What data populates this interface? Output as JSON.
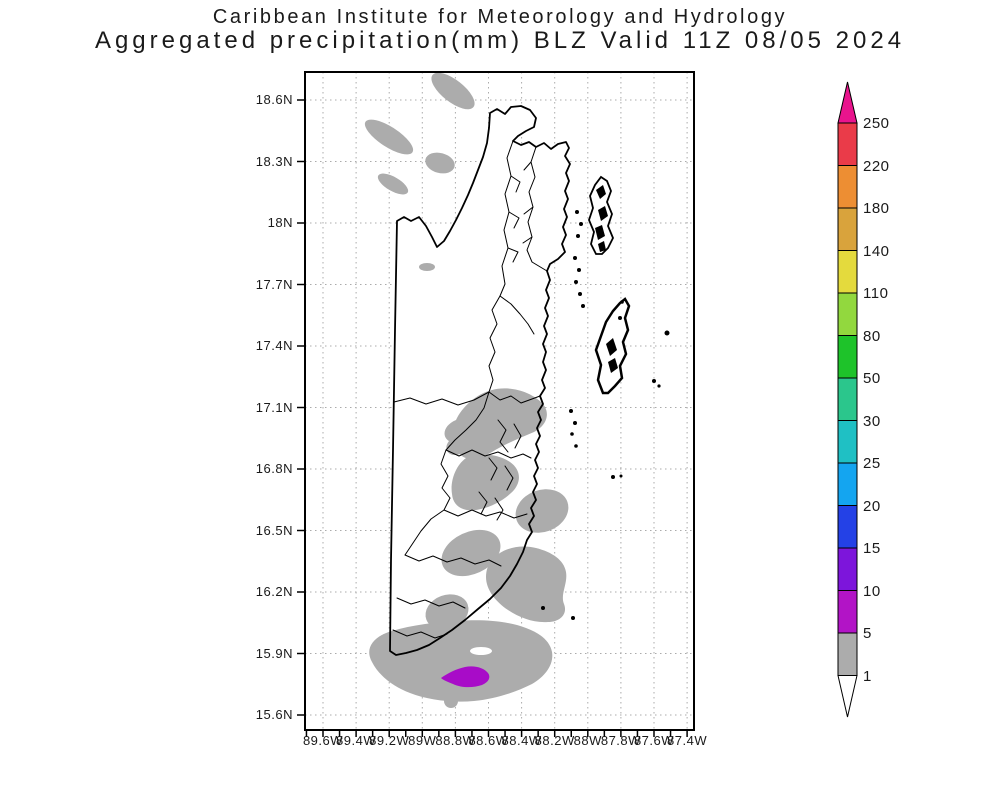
{
  "title": {
    "line1": "Caribbean Institute for Meteorology and Hydrology",
    "line2": "Aggregated precipitation(mm) BLZ Valid 11Z 08/05 2024"
  },
  "map": {
    "region_code": "BLZ",
    "y_axis_labels": [
      "18.6N",
      "18.3N",
      "18N",
      "17.7N",
      "17.4N",
      "17.1N",
      "16.8N",
      "16.5N",
      "16.2N",
      "15.9N",
      "15.6N"
    ],
    "x_axis_labels": [
      "89.6W",
      "89.4W",
      "89.2W",
      "89W",
      "88.8W",
      "88.6W",
      "88.4W",
      "88.2W",
      "88W",
      "87.8W",
      "87.6W",
      "87.4W"
    ],
    "precip_colors": {
      "level_1_5": "#ACACAC",
      "level_5_10": "#A80CC8"
    },
    "line_color": "#000000",
    "grid_color": "#ababab"
  },
  "colorbar": {
    "labels": [
      "250",
      "220",
      "180",
      "140",
      "110",
      "80",
      "50",
      "30",
      "25",
      "20",
      "15",
      "10",
      "5",
      "1"
    ],
    "segment_colors": [
      "#EA3B49",
      "#ED8E33",
      "#D9A33C",
      "#E4DA3D",
      "#92D83E",
      "#1EC32A",
      "#2BC68C",
      "#1FC0C4",
      "#14A5F0",
      "#2441E6",
      "#7D15DB",
      "#B214C6",
      "#ACACAC"
    ],
    "arrow_top_color": "#E9148D",
    "arrow_bottom_color": "#FFFFFF",
    "units": "mm"
  },
  "chart_data": {
    "type": "map",
    "title": "Aggregated precipitation(mm) BLZ Valid 11Z 08/05 2024",
    "legend_levels": [
      1,
      5,
      10,
      15,
      20,
      25,
      30,
      50,
      80,
      110,
      140,
      180,
      220,
      250
    ],
    "lat_range": [
      "15.6N",
      "18.6N"
    ],
    "lon_range": [
      "89.6W",
      "87.4W"
    ],
    "observed_levels_shown": [
      "1-5mm gray areas over northwest, central coast and south",
      "5-10mm purple area in far south near 16.2N 88.8W"
    ]
  }
}
